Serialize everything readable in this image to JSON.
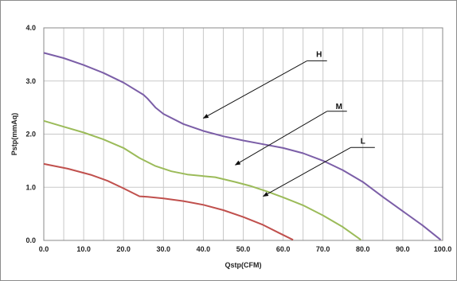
{
  "chart_data": {
    "type": "line",
    "title": "",
    "xlabel": "Qstp(CFM)",
    "ylabel": "Pstp(mmAq)",
    "xlim": [
      0,
      100
    ],
    "ylim": [
      0,
      4
    ],
    "x_ticks": [
      "0.0",
      "10.0",
      "20.0",
      "30.0",
      "40.0",
      "50.0",
      "60.0",
      "70.0",
      "80.0",
      "90.0",
      "100.0"
    ],
    "y_ticks": [
      "0.0",
      "1.0",
      "2.0",
      "3.0",
      "4.0"
    ],
    "grid": true,
    "series": [
      {
        "name": "H",
        "color": "#7b5ea7",
        "points": [
          [
            0,
            3.53
          ],
          [
            5,
            3.43
          ],
          [
            10,
            3.3
          ],
          [
            15,
            3.15
          ],
          [
            20,
            2.97
          ],
          [
            25,
            2.74
          ],
          [
            26,
            2.67
          ],
          [
            28,
            2.5
          ],
          [
            30,
            2.38
          ],
          [
            35,
            2.19
          ],
          [
            40,
            2.06
          ],
          [
            45,
            1.96
          ],
          [
            50,
            1.88
          ],
          [
            55,
            1.81
          ],
          [
            60,
            1.74
          ],
          [
            65,
            1.64
          ],
          [
            70,
            1.5
          ],
          [
            75,
            1.32
          ],
          [
            80,
            1.1
          ],
          [
            85,
            0.82
          ],
          [
            90,
            0.55
          ],
          [
            95,
            0.28
          ],
          [
            99.5,
            0.01
          ]
        ]
      },
      {
        "name": "M",
        "color": "#9bbb59",
        "points": [
          [
            0,
            2.25
          ],
          [
            5,
            2.14
          ],
          [
            10,
            2.03
          ],
          [
            15,
            1.9
          ],
          [
            20,
            1.74
          ],
          [
            24,
            1.55
          ],
          [
            28,
            1.4
          ],
          [
            32,
            1.3
          ],
          [
            36,
            1.24
          ],
          [
            40,
            1.21
          ],
          [
            43,
            1.19
          ],
          [
            48,
            1.1
          ],
          [
            52,
            1.02
          ],
          [
            56,
            0.92
          ],
          [
            60,
            0.81
          ],
          [
            65,
            0.66
          ],
          [
            70,
            0.47
          ],
          [
            75,
            0.25
          ],
          [
            79.5,
            0.01
          ]
        ]
      },
      {
        "name": "L",
        "color": "#c0504d",
        "points": [
          [
            0,
            1.44
          ],
          [
            6,
            1.35
          ],
          [
            12,
            1.23
          ],
          [
            16,
            1.12
          ],
          [
            20,
            0.98
          ],
          [
            24,
            0.83
          ],
          [
            26,
            0.82
          ],
          [
            30,
            0.79
          ],
          [
            35,
            0.74
          ],
          [
            40,
            0.67
          ],
          [
            45,
            0.57
          ],
          [
            50,
            0.44
          ],
          [
            55,
            0.29
          ],
          [
            59,
            0.14
          ],
          [
            62.5,
            0.01
          ]
        ]
      }
    ],
    "annotations": [
      {
        "label": "H",
        "text_at": [
          69,
          3.45
        ],
        "line_from": [
          71,
          3.38
        ],
        "line_to": [
          66,
          3.38
        ],
        "arrow_to": [
          40,
          2.3
        ]
      },
      {
        "label": "M",
        "text_at": [
          74,
          2.47
        ],
        "line_from": [
          76,
          2.43
        ],
        "line_to": [
          71,
          2.43
        ],
        "arrow_to": [
          48,
          1.42
        ]
      },
      {
        "label": "L",
        "text_at": [
          80,
          1.82
        ],
        "line_from": [
          83,
          1.75
        ],
        "line_to": [
          77,
          1.75
        ],
        "arrow_to": [
          55,
          0.83
        ]
      }
    ]
  }
}
